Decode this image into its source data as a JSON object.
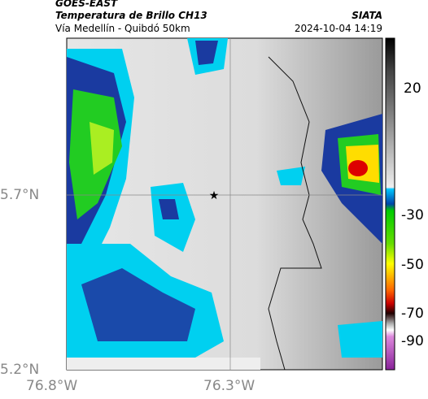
{
  "header": {
    "source": "GOES-EAST",
    "product": "Temperatura de Brillo CH13",
    "provider": "SIATA",
    "region": "Vía Medellín - Quibdó 50km",
    "datetime": "2024-10-04 14:19"
  },
  "map": {
    "lat_labels": [
      "5.7°N",
      "5.2°N"
    ],
    "lon_labels": [
      "76.8°W",
      "76.3°W"
    ]
  },
  "colorbar": {
    "ticks": [
      20,
      -30,
      -50,
      -70,
      -90
    ]
  }
}
